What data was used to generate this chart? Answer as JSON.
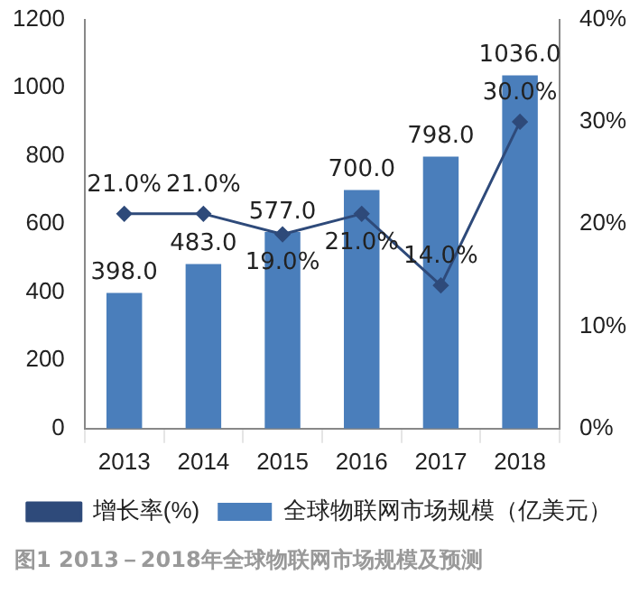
{
  "chart_data": {
    "type": "bar",
    "categories": [
      "2013",
      "2014",
      "2015",
      "2016",
      "2017",
      "2018"
    ],
    "series": [
      {
        "name": "全球物联网市场规模（亿美元）",
        "type": "bar",
        "color": "#4a7ebb",
        "values": [
          398,
          483,
          577,
          700,
          798,
          1036
        ],
        "value_labels": [
          "398.0",
          "483.0",
          "577.0",
          "700.0",
          "798.0",
          "1036.0"
        ]
      },
      {
        "name": "增长率(%)",
        "type": "line",
        "axis": "y2",
        "color": "#2e4a7a",
        "values": [
          21,
          21,
          19,
          21,
          14,
          30
        ],
        "value_labels": [
          "21.0%",
          "21.0%",
          "19.0%",
          "21.0%",
          "14.0%",
          "30.0%"
        ]
      }
    ],
    "ylim": [
      0,
      1200
    ],
    "yticks": [
      0,
      200,
      400,
      600,
      800,
      1000,
      1200
    ],
    "y2lim": [
      0,
      40
    ],
    "y2ticks": [
      {
        "value": 0,
        "label": "0%"
      },
      {
        "value": 10,
        "label": "10%"
      },
      {
        "value": 20,
        "label": "20%"
      },
      {
        "value": 30,
        "label": "30%"
      },
      {
        "value": 40,
        "label": "40%"
      }
    ],
    "grid": false,
    "legend": "bottom",
    "marker": "diamond",
    "line_style": "solid",
    "annotations": [
      "图1 2013－2018年全球物联网市场规模及预测"
    ]
  }
}
